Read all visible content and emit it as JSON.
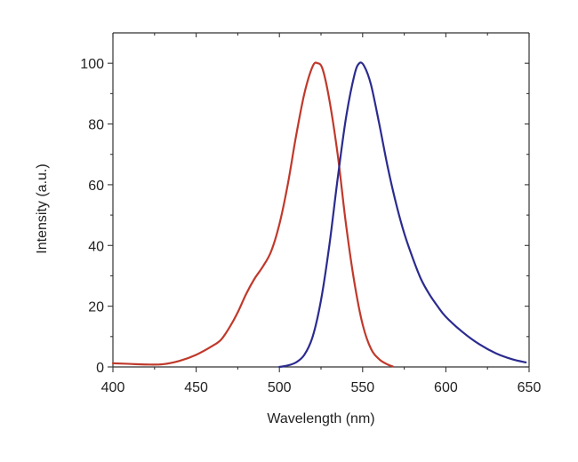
{
  "chart_data": {
    "type": "line",
    "title": "",
    "xlabel": "Wavelength (nm)",
    "ylabel": "Intensity (a.u.)",
    "xlim": [
      400,
      650
    ],
    "ylim": [
      0,
      110
    ],
    "x_ticks": [
      400,
      450,
      500,
      550,
      600,
      650
    ],
    "y_ticks": [
      0,
      20,
      40,
      60,
      80,
      100
    ],
    "grid": false,
    "legend": "none",
    "series": [
      {
        "color": "#c0392b",
        "points": [
          [
            400,
            1.2
          ],
          [
            410,
            1.0
          ],
          [
            420,
            0.8
          ],
          [
            430,
            0.9
          ],
          [
            440,
            2.0
          ],
          [
            450,
            4.0
          ],
          [
            460,
            7.0
          ],
          [
            465,
            9.0
          ],
          [
            470,
            13.0
          ],
          [
            475,
            18.0
          ],
          [
            480,
            24.0
          ],
          [
            485,
            29.0
          ],
          [
            490,
            33.0
          ],
          [
            495,
            38.0
          ],
          [
            500,
            47.0
          ],
          [
            505,
            60.0
          ],
          [
            510,
            76.0
          ],
          [
            515,
            90.0
          ],
          [
            520,
            99.0
          ],
          [
            523,
            100.0
          ],
          [
            526,
            98.0
          ],
          [
            530,
            88.0
          ],
          [
            535,
            70.0
          ],
          [
            540,
            47.0
          ],
          [
            545,
            28.0
          ],
          [
            550,
            14.0
          ],
          [
            555,
            6.0
          ],
          [
            560,
            2.5
          ],
          [
            565,
            0.8
          ],
          [
            568,
            0.2
          ]
        ]
      },
      {
        "color": "#2b2b8f",
        "points": [
          [
            500,
            0.0
          ],
          [
            505,
            0.5
          ],
          [
            510,
            1.5
          ],
          [
            515,
            4.0
          ],
          [
            520,
            10.0
          ],
          [
            525,
            22.0
          ],
          [
            530,
            40.0
          ],
          [
            535,
            62.0
          ],
          [
            540,
            82.0
          ],
          [
            545,
            96.0
          ],
          [
            548,
            100.0
          ],
          [
            551,
            99.0
          ],
          [
            555,
            93.0
          ],
          [
            560,
            80.0
          ],
          [
            565,
            66.0
          ],
          [
            570,
            54.0
          ],
          [
            575,
            44.0
          ],
          [
            580,
            36.0
          ],
          [
            585,
            29.0
          ],
          [
            590,
            24.0
          ],
          [
            595,
            20.0
          ],
          [
            600,
            16.5
          ],
          [
            610,
            11.5
          ],
          [
            620,
            7.5
          ],
          [
            630,
            4.5
          ],
          [
            640,
            2.5
          ],
          [
            648,
            1.5
          ]
        ]
      }
    ]
  }
}
